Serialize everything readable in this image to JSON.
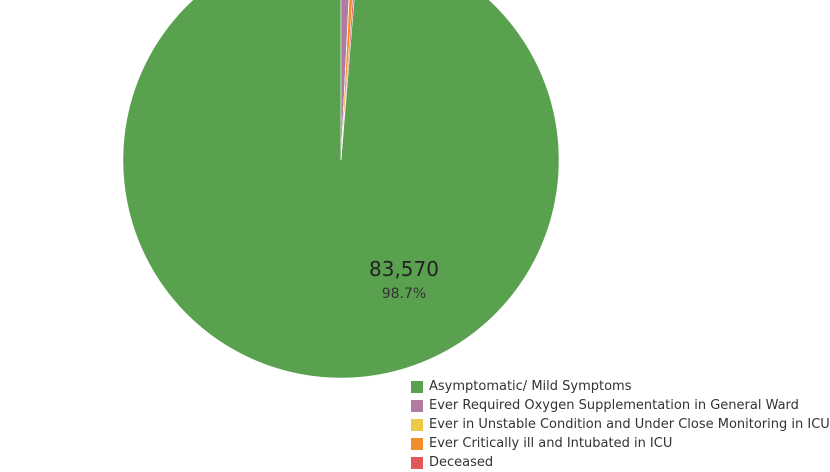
{
  "chart_data": {
    "type": "pie",
    "categories": [
      "Asymptomatic/ Mild Symptoms",
      "Ever Required Oxygen Supplementation in General Ward",
      "Ever in Unstable Condition and Under Close Monitoring in ICU",
      "Ever Critically ill and Intubated in ICU",
      "Deceased"
    ],
    "values": [
      83570,
      660,
      30,
      280,
      130
    ],
    "colors": [
      "#59a14f",
      "#b07aa1",
      "#edc948",
      "#f28e2b",
      "#e15759"
    ],
    "data_labels": [
      {
        "category": "Asymptomatic/ Mild Symptoms",
        "value_text": "83,570",
        "percent_text": "98.7%"
      }
    ],
    "title": "",
    "legend_position": "bottom-right"
  }
}
